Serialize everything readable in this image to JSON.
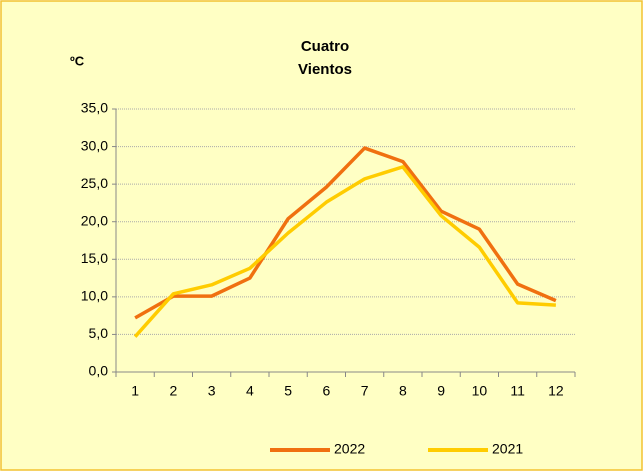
{
  "chart_data": {
    "type": "line",
    "title": [
      "Cuatro",
      "Vientos"
    ],
    "y_label": "ºC",
    "categories": [
      "1",
      "2",
      "3",
      "4",
      "5",
      "6",
      "7",
      "8",
      "9",
      "10",
      "11",
      "12"
    ],
    "series": [
      {
        "name": "2022",
        "color": "#f07010",
        "values": [
          7.2,
          10.1,
          10.1,
          12.5,
          20.4,
          24.6,
          29.8,
          28.0,
          21.4,
          19.0,
          11.7,
          9.5
        ]
      },
      {
        "name": "2021",
        "color": "#ffcc00",
        "values": [
          4.7,
          10.4,
          11.6,
          13.8,
          18.5,
          22.6,
          25.7,
          27.3,
          20.8,
          16.6,
          9.2,
          8.9
        ]
      }
    ],
    "ylim": [
      0,
      35
    ],
    "yticks": [
      {
        "value": 0,
        "label": "0,0"
      },
      {
        "value": 5,
        "label": "5,0"
      },
      {
        "value": 10,
        "label": "10,0"
      },
      {
        "value": 15,
        "label": "15,0"
      },
      {
        "value": 20,
        "label": "20,0"
      },
      {
        "value": 25,
        "label": "25,0"
      },
      {
        "value": 30,
        "label": "30,0"
      },
      {
        "value": 35,
        "label": "35,0"
      }
    ],
    "grid": true,
    "legend": "bottom"
  }
}
